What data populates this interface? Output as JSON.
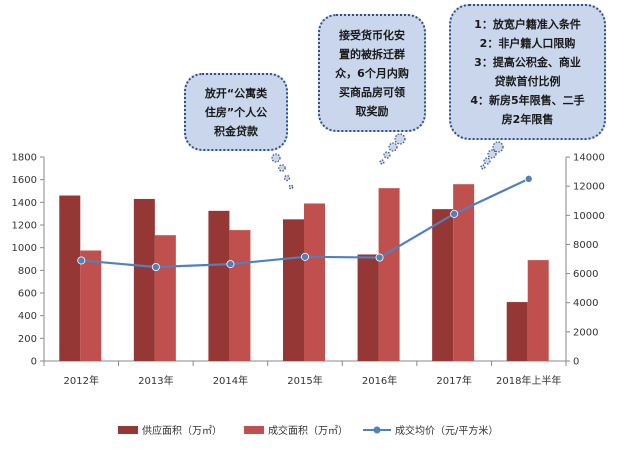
{
  "chart_data": {
    "type": "bar",
    "categories": [
      "2012年",
      "2013年",
      "2014年",
      "2015年",
      "2016年",
      "2017年",
      "2018年上半年"
    ],
    "series": [
      {
        "name": "供应面积（万㎡）",
        "type": "bar",
        "axis": "left",
        "color": "#953735",
        "values": [
          1460,
          1430,
          1325,
          1250,
          940,
          1340,
          520
        ]
      },
      {
        "name": "成交面积（万㎡）",
        "type": "bar",
        "axis": "left",
        "color": "#c0504d",
        "values": [
          975,
          1110,
          1155,
          1390,
          1525,
          1560,
          890
        ]
      },
      {
        "name": "成交均价（元/平方米）",
        "type": "line",
        "axis": "right",
        "color": "#4f81bd",
        "values": [
          6900,
          6450,
          6650,
          7150,
          7100,
          10100,
          12500
        ]
      }
    ],
    "y_left": {
      "ticks": [
        0,
        200,
        400,
        600,
        800,
        1000,
        1200,
        1400,
        1600,
        1800
      ],
      "ylim": [
        0,
        1800
      ]
    },
    "y_right": {
      "ticks": [
        0,
        2000,
        4000,
        6000,
        8000,
        10000,
        12000,
        14000
      ],
      "ylim": [
        0,
        14000
      ]
    },
    "grid": false,
    "legend_position": "bottom"
  },
  "annotations": [
    {
      "id": "c1",
      "lines": [
        "放开“公寓类",
        "住房”个人公",
        "积金贷款"
      ]
    },
    {
      "id": "c2",
      "lines": [
        "接受货币化安",
        "置的被拆迁群",
        "众，6个月内购",
        "买商品房可领",
        "取奖励"
      ]
    },
    {
      "id": "c3",
      "lines": [
        "1：放宽户籍准入条件",
        "2：非户籍人口限购",
        "3：提高公积金、商业",
        "贷款首付比例",
        "4：新房5年限售、二手",
        "房2年限售"
      ]
    }
  ],
  "colors": {
    "callout_fill": "#c9d6ec",
    "callout_border": "#2f4f8a"
  }
}
